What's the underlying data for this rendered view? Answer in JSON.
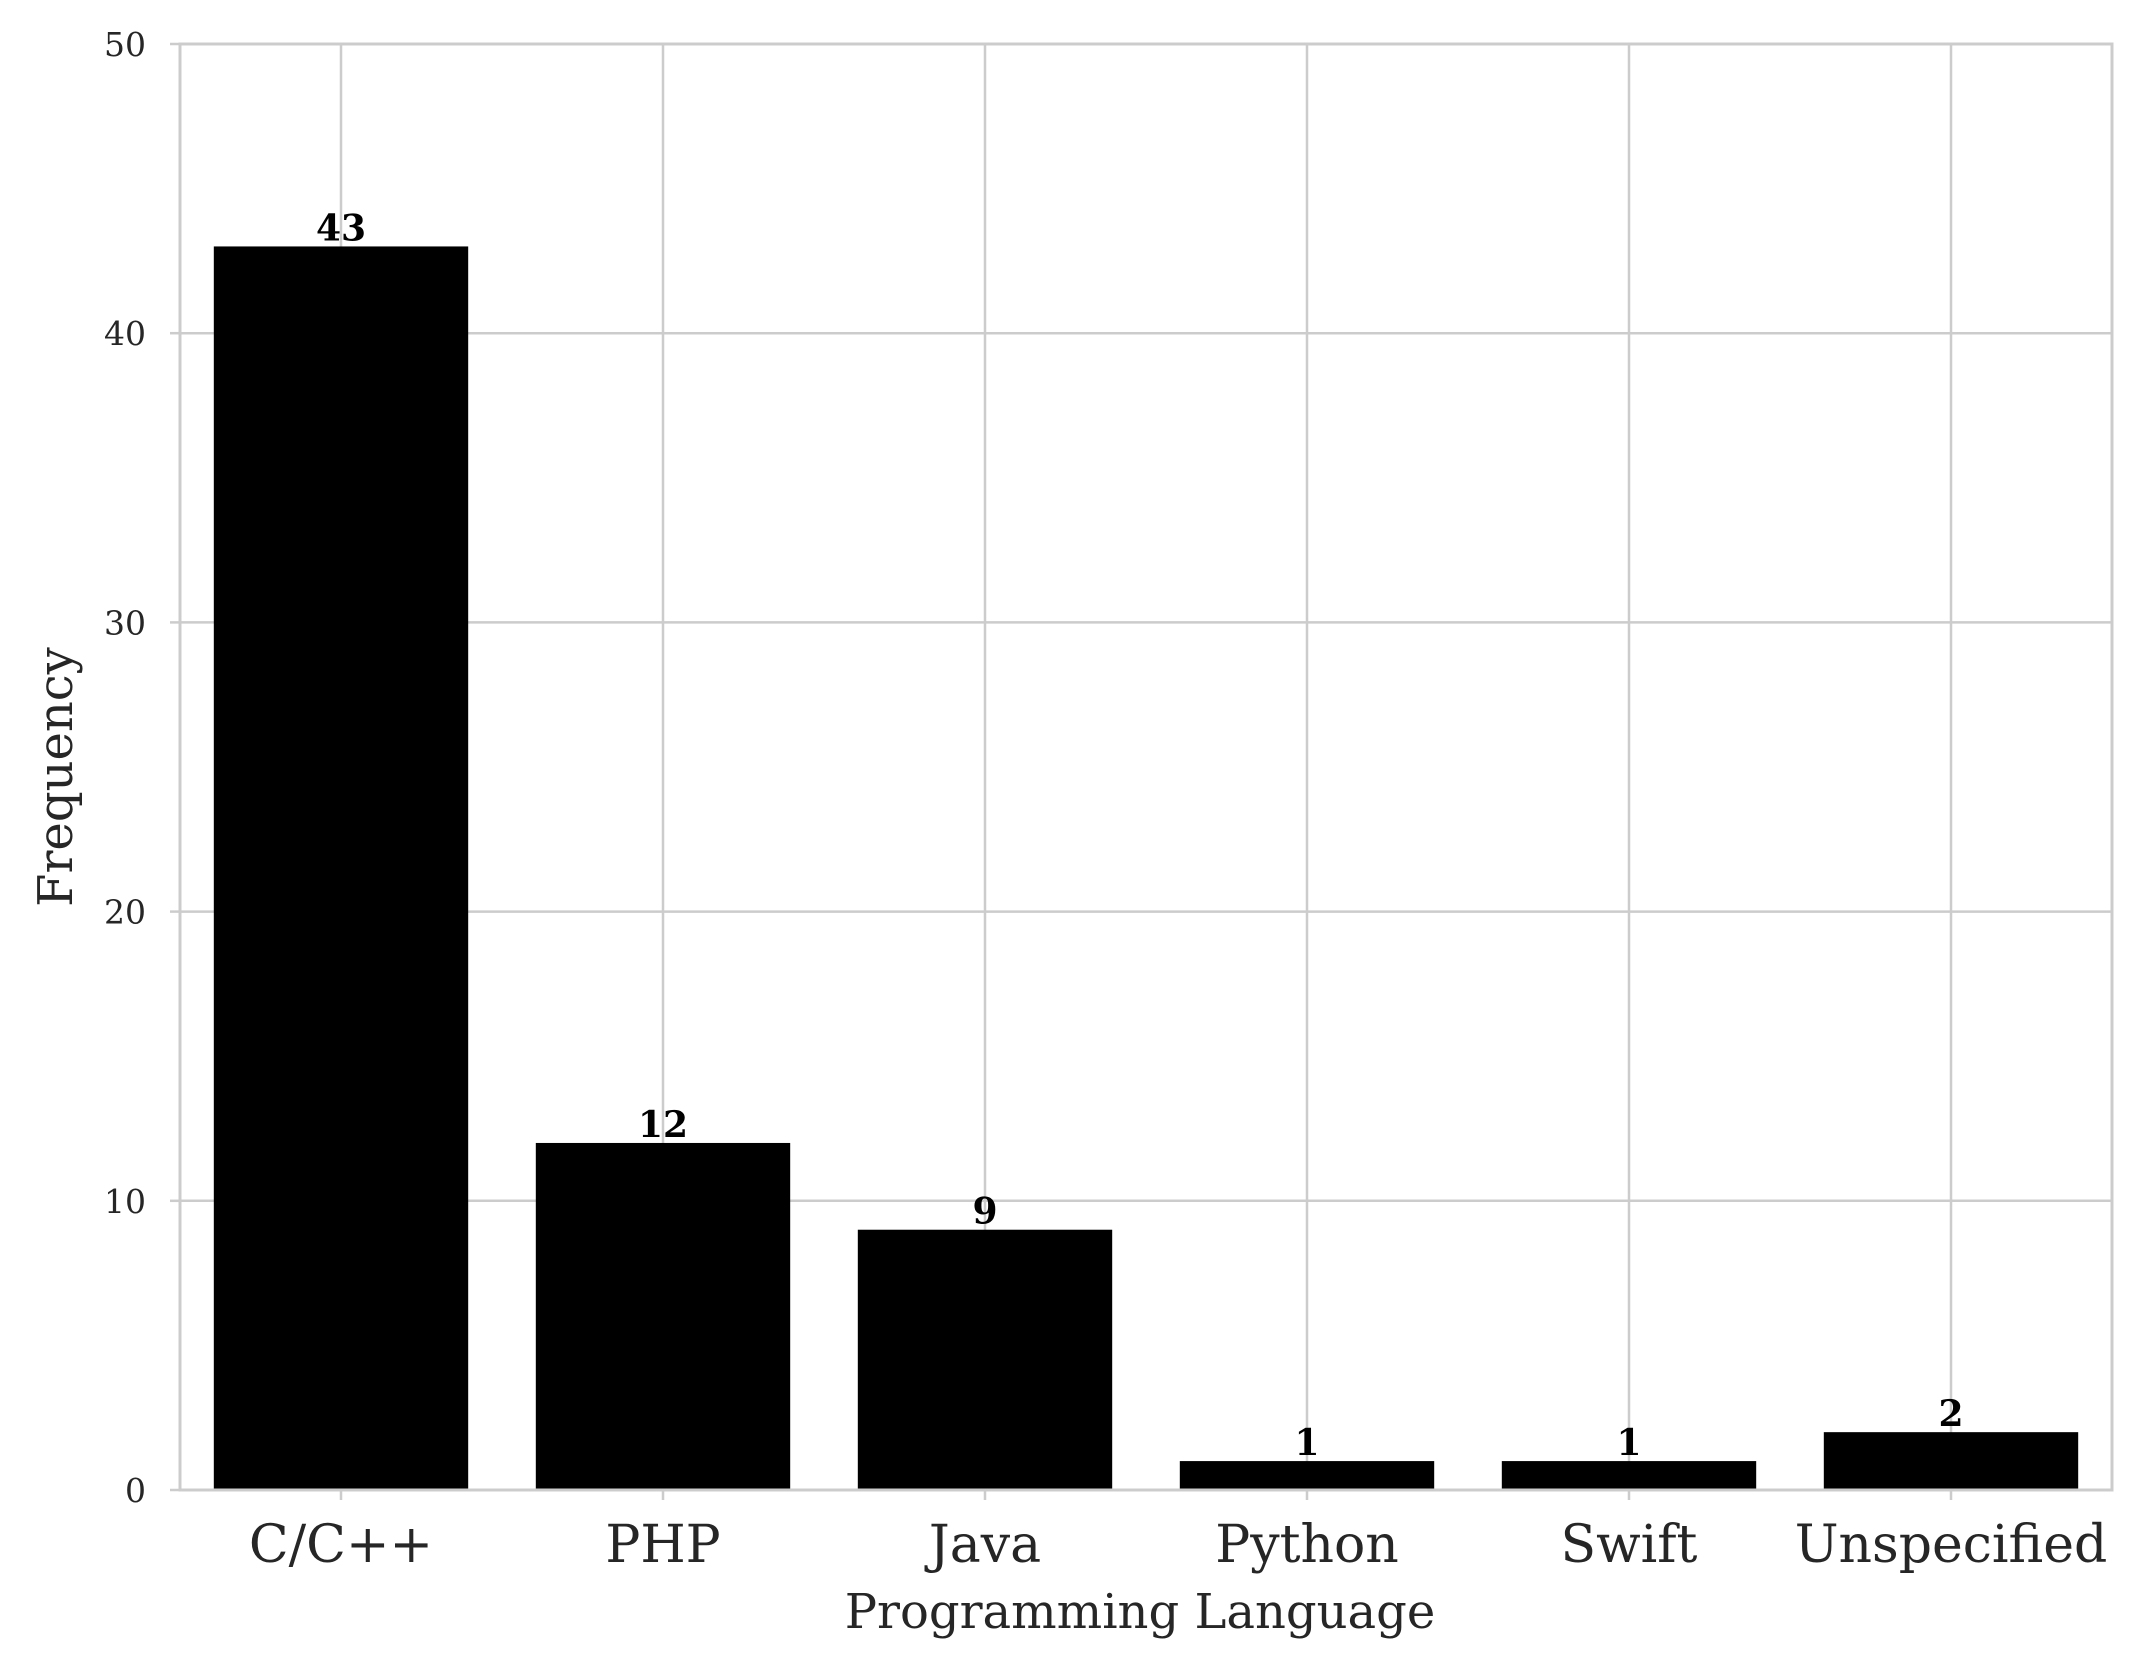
{
  "chart_data": {
    "type": "bar",
    "categories": [
      "C/C++",
      "PHP",
      "Java",
      "Python",
      "Swift",
      "Unspecified"
    ],
    "values": [
      43,
      12,
      9,
      1,
      1,
      2
    ],
    "data_labels": [
      "43",
      "12",
      "9",
      "1",
      "1",
      "2"
    ],
    "title": "",
    "xlabel": "Programming Language",
    "ylabel": "Frequency",
    "ylim": [
      0,
      50
    ],
    "yticks": [
      0,
      10,
      20,
      30,
      40,
      50
    ],
    "ytick_labels": [
      "0",
      "10",
      "20",
      "30",
      "40",
      "50"
    ],
    "grid": true,
    "legend": "none",
    "colors": {
      "bar": "#000000",
      "grid": "#cccccc",
      "spine": "#cccccc",
      "text": "#262626"
    }
  }
}
